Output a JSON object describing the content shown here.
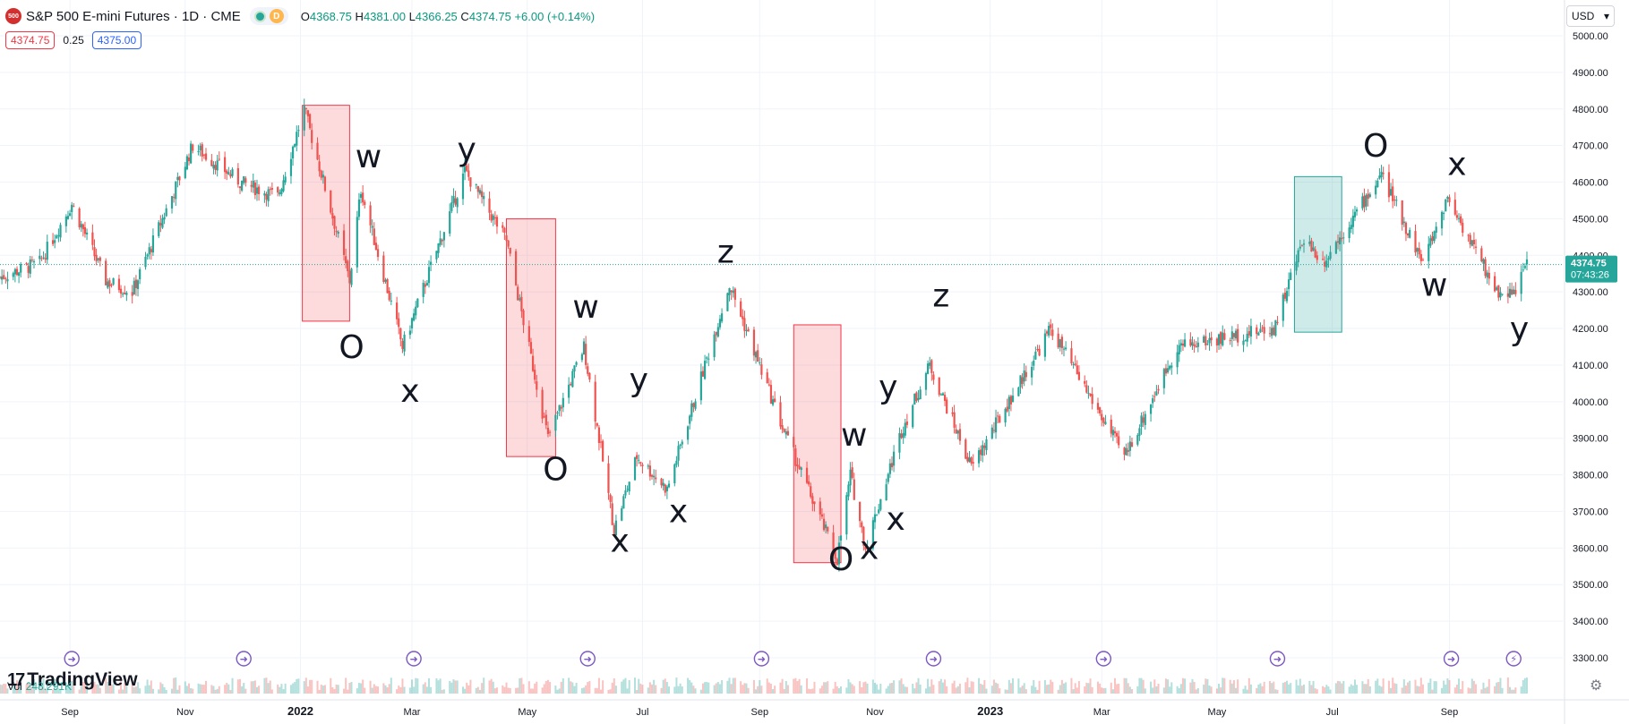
{
  "header": {
    "symbol_badge": "500",
    "symbol_title": "S&P 500 E-mini Futures · 1D · CME",
    "interval_badge": "D",
    "ohlc": {
      "o_label": "O",
      "o": "4368.75",
      "h_label": "H",
      "h": "4381.00",
      "l_label": "L",
      "l": "4366.25",
      "c_label": "C",
      "c": "4374.75",
      "change": "+6.00 (+0.14%)"
    }
  },
  "quote": {
    "sell": "4374.75",
    "spread": "0.25",
    "buy": "4375.00"
  },
  "currency": {
    "value": "USD"
  },
  "watermark": {
    "text": "TradingView"
  },
  "volume": {
    "label": "Vol",
    "value": "248.291K"
  },
  "colors": {
    "up": "#26a69a",
    "down": "#ef5350",
    "red_box": "#f23645",
    "green_box": "#26a69a",
    "event_icon": "#7e57c2"
  },
  "icons": [
    "gear-icon",
    "chevron-down-icon",
    "event-arrow-icon",
    "lightning-icon"
  ],
  "chart_data": {
    "type": "candlestick",
    "instrument": "S&P 500 E-mini Futures",
    "interval": "1D",
    "y_axis": {
      "ticks": [
        3300,
        3400,
        3500,
        3600,
        3700,
        3800,
        3900,
        4000,
        4100,
        4200,
        4300,
        4400,
        4500,
        4600,
        4700,
        4800,
        4900,
        5000
      ],
      "range": [
        3250,
        5030
      ]
    },
    "x_axis_labels": [
      "Sep",
      "Nov",
      "2022",
      "Mar",
      "May",
      "Jul",
      "Sep",
      "Nov",
      "2023",
      "Mar",
      "May",
      "Jul",
      "Sep"
    ],
    "current_price": {
      "value": "4374.75",
      "countdown": "07:43:26"
    },
    "price_path": [
      [
        "2021-07-26",
        4340
      ],
      [
        "2021-08-16",
        4380
      ],
      [
        "2021-09-02",
        4540
      ],
      [
        "2021-09-20",
        4330
      ],
      [
        "2021-10-04",
        4300
      ],
      [
        "2021-11-05",
        4700
      ],
      [
        "2021-11-30",
        4600
      ],
      [
        "2021-12-20",
        4560
      ],
      [
        "2022-01-03",
        4800
      ],
      [
        "2022-01-27",
        4330
      ],
      [
        "2022-02-02",
        4580
      ],
      [
        "2022-02-24",
        4150
      ],
      [
        "2022-03-29",
        4630
      ],
      [
        "2022-04-20",
        4440
      ],
      [
        "2022-05-12",
        3900
      ],
      [
        "2022-05-31",
        4150
      ],
      [
        "2022-06-16",
        3650
      ],
      [
        "2022-06-28",
        3850
      ],
      [
        "2022-07-14",
        3760
      ],
      [
        "2022-08-16",
        4320
      ],
      [
        "2022-09-13",
        3930
      ],
      [
        "2022-10-12",
        3570
      ],
      [
        "2022-10-19",
        3800
      ],
      [
        "2022-10-27",
        3600
      ],
      [
        "2022-11-15",
        3920
      ],
      [
        "2022-11-30",
        4100
      ],
      [
        "2022-12-22",
        3820
      ],
      [
        "2023-02-02",
        4200
      ],
      [
        "2023-03-13",
        3850
      ],
      [
        "2023-04-10",
        4150
      ],
      [
        "2023-05-31",
        4200
      ],
      [
        "2023-06-16",
        4450
      ],
      [
        "2023-06-26",
        4380
      ],
      [
        "2023-07-27",
        4620
      ],
      [
        "2023-08-18",
        4380
      ],
      [
        "2023-08-31",
        4560
      ],
      [
        "2023-09-26",
        4300
      ],
      [
        "2023-10-05",
        4300
      ],
      [
        "2023-10-12",
        4374.75
      ]
    ],
    "annotations": [
      {
        "text": "w",
        "date": "2022-02-06",
        "price": 4640
      },
      {
        "text": "O",
        "date": "2022-01-28",
        "price": 4120
      },
      {
        "text": "x",
        "date": "2022-02-28",
        "price": 4000
      },
      {
        "text": "y",
        "date": "2022-03-30",
        "price": 4660
      },
      {
        "text": "O",
        "date": "2022-05-16",
        "price": 3785
      },
      {
        "text": "w",
        "date": "2022-06-01",
        "price": 4230
      },
      {
        "text": "x",
        "date": "2022-06-19",
        "price": 3590
      },
      {
        "text": "y",
        "date": "2022-06-29",
        "price": 4030
      },
      {
        "text": "x",
        "date": "2022-07-20",
        "price": 3670
      },
      {
        "text": "z",
        "date": "2022-08-14",
        "price": 4380
      },
      {
        "text": "w",
        "date": "2022-10-21",
        "price": 3880
      },
      {
        "text": "O",
        "date": "2022-10-14",
        "price": 3540
      },
      {
        "text": "x",
        "date": "2022-10-29",
        "price": 3570
      },
      {
        "text": "y",
        "date": "2022-11-08",
        "price": 4010
      },
      {
        "text": "x",
        "date": "2022-11-12",
        "price": 3650
      },
      {
        "text": "z",
        "date": "2022-12-06",
        "price": 4260
      },
      {
        "text": "O",
        "date": "2023-07-24",
        "price": 4670
      },
      {
        "text": "w",
        "date": "2023-08-24",
        "price": 4290
      },
      {
        "text": "x",
        "date": "2023-09-05",
        "price": 4620
      },
      {
        "text": "y",
        "date": "2023-10-08",
        "price": 4170
      }
    ],
    "boxes": [
      {
        "color": "red",
        "from": "2022-01-02",
        "to": "2022-01-27",
        "high": 4810,
        "low": 4220
      },
      {
        "color": "red",
        "from": "2022-04-20",
        "to": "2022-05-16",
        "high": 4500,
        "low": 3850
      },
      {
        "color": "red",
        "from": "2022-09-19",
        "to": "2022-10-14",
        "high": 4210,
        "low": 3560
      },
      {
        "color": "green",
        "from": "2023-06-11",
        "to": "2023-07-06",
        "high": 4615,
        "low": 4190
      }
    ],
    "event_markers": [
      "2021-09-02",
      "2021-12-02",
      "2022-03-02",
      "2022-06-02",
      "2022-09-02",
      "2022-12-02",
      "2023-03-02",
      "2023-06-02",
      "2023-09-02",
      "2023-10-05"
    ]
  }
}
